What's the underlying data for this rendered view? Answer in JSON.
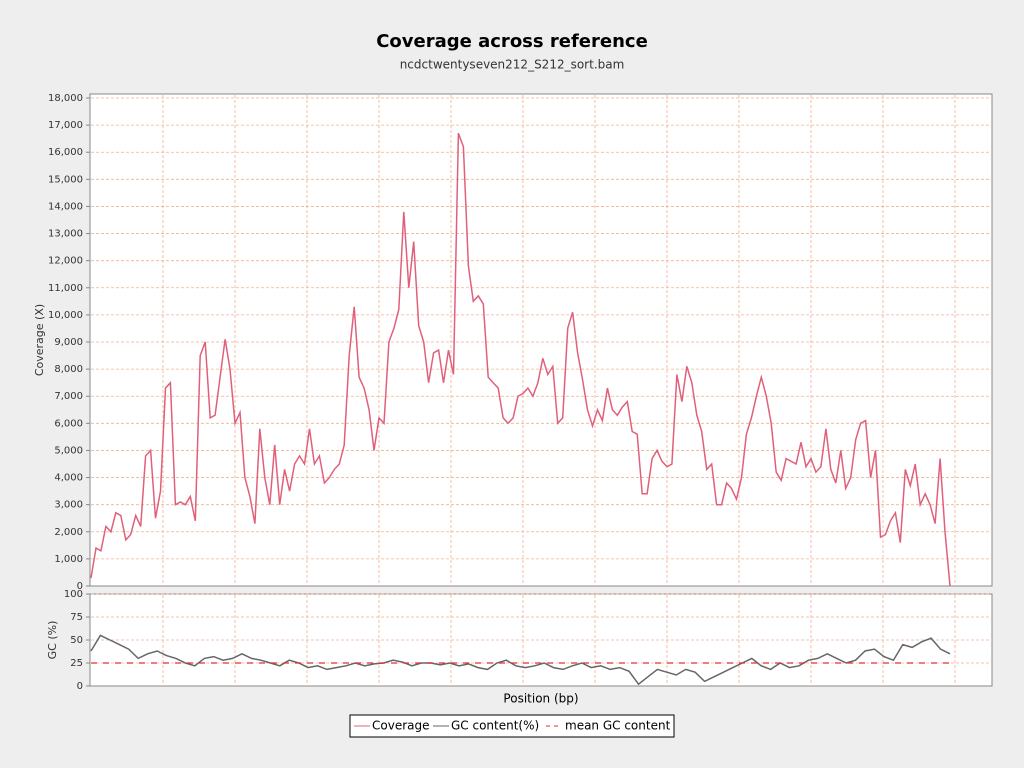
{
  "chart_data": [
    {
      "type": "line",
      "title": "Coverage across reference",
      "subtitle": "ncdctwentyseven212_S212_sort.bam",
      "ylabel": "Coverage (X)",
      "grid": true,
      "ylim": [
        0,
        18000
      ],
      "yticks": [
        0,
        {
          "value": 1000,
          "label": "1,000"
        },
        {
          "value": 2000,
          "label": "2,000"
        },
        {
          "value": 3000,
          "label": "3,000"
        },
        {
          "value": 4000,
          "label": "4,000"
        },
        {
          "value": 5000,
          "label": "5,000"
        },
        {
          "value": 6000,
          "label": "6,000"
        },
        {
          "value": 7000,
          "label": "7,000"
        },
        {
          "value": 8000,
          "label": "8,000"
        },
        {
          "value": 9000,
          "label": "9,000"
        },
        {
          "value": 10000,
          "label": "10,000"
        },
        {
          "value": 11000,
          "label": "11,000"
        },
        {
          "value": 12000,
          "label": "12,000"
        },
        {
          "value": 13000,
          "label": "13,000"
        },
        {
          "value": 14000,
          "label": "14,000"
        },
        {
          "value": 15000,
          "label": "15,000"
        },
        {
          "value": 16000,
          "label": "16,000"
        },
        {
          "value": 17000,
          "label": "17,000"
        },
        {
          "value": 18000,
          "label": "18,000"
        }
      ],
      "series": [
        {
          "name": "Coverage",
          "color": "#e0607a",
          "values": [
            300,
            1400,
            1300,
            2200,
            2000,
            2700,
            2600,
            1700,
            1900,
            2600,
            2200,
            4800,
            5000,
            2500,
            3500,
            7300,
            7500,
            3000,
            3100,
            3000,
            3300,
            2400,
            8500,
            9000,
            6200,
            6300,
            7700,
            9100,
            8000,
            6000,
            6400,
            4000,
            3300,
            2300,
            5800,
            4000,
            3000,
            5200,
            3000,
            4300,
            3500,
            4500,
            4800,
            4500,
            5800,
            4500,
            4800,
            3800,
            4000,
            4300,
            4500,
            5200,
            8500,
            10300,
            7700,
            7300,
            6500,
            5000,
            6200,
            6000,
            9000,
            9500,
            10200,
            13800,
            11000,
            12700,
            9600,
            9000,
            7500,
            8600,
            8700,
            7500,
            8700,
            7800,
            16700,
            16200,
            11800,
            10500,
            10700,
            10400,
            7700,
            7500,
            7300,
            6200,
            6000,
            6200,
            7000,
            7100,
            7300,
            7000,
            7500,
            8400,
            7800,
            8100,
            6000,
            6200,
            9500,
            10100,
            8600,
            7600,
            6500,
            5900,
            6500,
            6100,
            7300,
            6500,
            6300,
            6600,
            6800,
            5700,
            5600,
            3400,
            3400,
            4700,
            5000,
            4600,
            4400,
            4500,
            7800,
            6800,
            8100,
            7500,
            6300,
            5700,
            4300,
            4500,
            3000,
            3000,
            3800,
            3600,
            3200,
            4000,
            5600,
            6200,
            7000,
            7700,
            7000,
            6000,
            4200,
            3900,
            4700,
            4600,
            4500,
            5300,
            4400,
            4700,
            4200,
            4400,
            5800,
            4300,
            3800,
            5000,
            3600,
            4000,
            5400,
            6000,
            6100,
            4000,
            5000,
            1800,
            1900,
            2400,
            2700,
            1600,
            4300,
            3700,
            4500,
            3000,
            3400,
            3000,
            2300,
            4700,
            2000,
            0
          ]
        }
      ]
    },
    {
      "type": "line",
      "ylabel": "GC (%)",
      "xlabel": "Position (bp)",
      "grid": true,
      "ylim": [
        0,
        100
      ],
      "yticks": [
        0,
        25,
        50,
        75,
        100
      ],
      "series": [
        {
          "name": "GC content(%)",
          "color": "#666666",
          "values": [
            38,
            55,
            50,
            45,
            40,
            30,
            35,
            38,
            33,
            30,
            25,
            22,
            30,
            32,
            28,
            30,
            35,
            30,
            28,
            25,
            22,
            28,
            25,
            20,
            22,
            18,
            20,
            22,
            25,
            22,
            24,
            25,
            28,
            26,
            22,
            25,
            25,
            23,
            25,
            22,
            24,
            20,
            18,
            25,
            28,
            22,
            20,
            22,
            25,
            20,
            18,
            22,
            25,
            20,
            22,
            18,
            20,
            16,
            2,
            10,
            18,
            15,
            12,
            18,
            15,
            5,
            10,
            15,
            20,
            25,
            30,
            22,
            18,
            25,
            20,
            22,
            28,
            30,
            35,
            30,
            25,
            28,
            38,
            40,
            32,
            28,
            45,
            42,
            48,
            52,
            40,
            35
          ]
        }
      ],
      "mean": {
        "name": "mean GC content",
        "color": "#e03030",
        "value": 25
      }
    }
  ]
}
